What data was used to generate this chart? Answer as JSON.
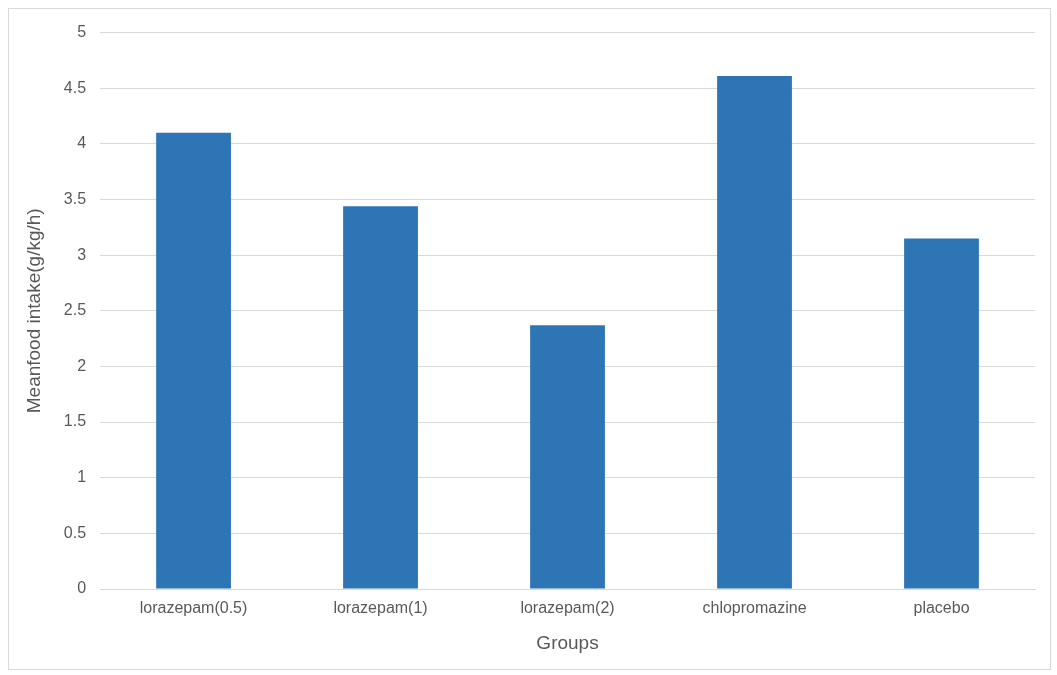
{
  "chart_data": {
    "type": "bar",
    "xlabel": "Groups",
    "ylabel": "Meanfood intake(g/kg/h)",
    "categories": [
      "lorazepam(0.5)",
      "lorazepam(1)",
      "lorazepam(2)",
      "chlopromazine",
      "placebo"
    ],
    "values": [
      4.1,
      3.44,
      2.37,
      4.61,
      3.15
    ],
    "color": "#2e75b6",
    "ylim": [
      0,
      5
    ],
    "yticks": [
      0,
      0.5,
      1,
      1.5,
      2,
      2.5,
      3,
      3.5,
      4,
      4.5,
      5
    ],
    "grid": "y"
  }
}
